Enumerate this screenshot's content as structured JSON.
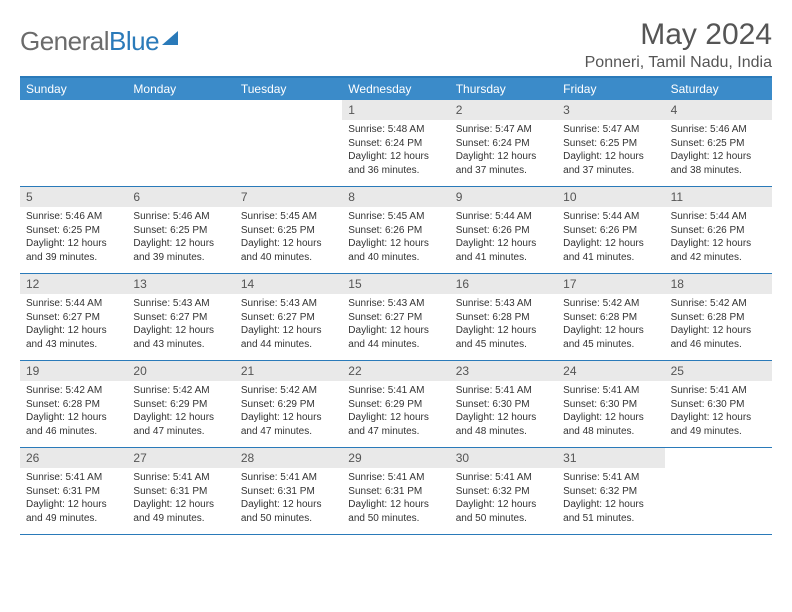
{
  "logo": {
    "text_gray": "General",
    "text_blue": "Blue"
  },
  "title": "May 2024",
  "location": "Ponneri, Tamil Nadu, India",
  "colors": {
    "header_bar": "#3b8bc9",
    "rule": "#2a7ab9",
    "daynum_bg": "#e9e9e9",
    "text_muted": "#555555"
  },
  "weekdays": [
    "Sunday",
    "Monday",
    "Tuesday",
    "Wednesday",
    "Thursday",
    "Friday",
    "Saturday"
  ],
  "weeks": [
    [
      {
        "empty": true
      },
      {
        "empty": true
      },
      {
        "empty": true
      },
      {
        "n": "1",
        "sunrise": "5:48 AM",
        "sunset": "6:24 PM",
        "daylight": "12 hours and 36 minutes."
      },
      {
        "n": "2",
        "sunrise": "5:47 AM",
        "sunset": "6:24 PM",
        "daylight": "12 hours and 37 minutes."
      },
      {
        "n": "3",
        "sunrise": "5:47 AM",
        "sunset": "6:25 PM",
        "daylight": "12 hours and 37 minutes."
      },
      {
        "n": "4",
        "sunrise": "5:46 AM",
        "sunset": "6:25 PM",
        "daylight": "12 hours and 38 minutes."
      }
    ],
    [
      {
        "n": "5",
        "sunrise": "5:46 AM",
        "sunset": "6:25 PM",
        "daylight": "12 hours and 39 minutes."
      },
      {
        "n": "6",
        "sunrise": "5:46 AM",
        "sunset": "6:25 PM",
        "daylight": "12 hours and 39 minutes."
      },
      {
        "n": "7",
        "sunrise": "5:45 AM",
        "sunset": "6:25 PM",
        "daylight": "12 hours and 40 minutes."
      },
      {
        "n": "8",
        "sunrise": "5:45 AM",
        "sunset": "6:26 PM",
        "daylight": "12 hours and 40 minutes."
      },
      {
        "n": "9",
        "sunrise": "5:44 AM",
        "sunset": "6:26 PM",
        "daylight": "12 hours and 41 minutes."
      },
      {
        "n": "10",
        "sunrise": "5:44 AM",
        "sunset": "6:26 PM",
        "daylight": "12 hours and 41 minutes."
      },
      {
        "n": "11",
        "sunrise": "5:44 AM",
        "sunset": "6:26 PM",
        "daylight": "12 hours and 42 minutes."
      }
    ],
    [
      {
        "n": "12",
        "sunrise": "5:44 AM",
        "sunset": "6:27 PM",
        "daylight": "12 hours and 43 minutes."
      },
      {
        "n": "13",
        "sunrise": "5:43 AM",
        "sunset": "6:27 PM",
        "daylight": "12 hours and 43 minutes."
      },
      {
        "n": "14",
        "sunrise": "5:43 AM",
        "sunset": "6:27 PM",
        "daylight": "12 hours and 44 minutes."
      },
      {
        "n": "15",
        "sunrise": "5:43 AM",
        "sunset": "6:27 PM",
        "daylight": "12 hours and 44 minutes."
      },
      {
        "n": "16",
        "sunrise": "5:43 AM",
        "sunset": "6:28 PM",
        "daylight": "12 hours and 45 minutes."
      },
      {
        "n": "17",
        "sunrise": "5:42 AM",
        "sunset": "6:28 PM",
        "daylight": "12 hours and 45 minutes."
      },
      {
        "n": "18",
        "sunrise": "5:42 AM",
        "sunset": "6:28 PM",
        "daylight": "12 hours and 46 minutes."
      }
    ],
    [
      {
        "n": "19",
        "sunrise": "5:42 AM",
        "sunset": "6:28 PM",
        "daylight": "12 hours and 46 minutes."
      },
      {
        "n": "20",
        "sunrise": "5:42 AM",
        "sunset": "6:29 PM",
        "daylight": "12 hours and 47 minutes."
      },
      {
        "n": "21",
        "sunrise": "5:42 AM",
        "sunset": "6:29 PM",
        "daylight": "12 hours and 47 minutes."
      },
      {
        "n": "22",
        "sunrise": "5:41 AM",
        "sunset": "6:29 PM",
        "daylight": "12 hours and 47 minutes."
      },
      {
        "n": "23",
        "sunrise": "5:41 AM",
        "sunset": "6:30 PM",
        "daylight": "12 hours and 48 minutes."
      },
      {
        "n": "24",
        "sunrise": "5:41 AM",
        "sunset": "6:30 PM",
        "daylight": "12 hours and 48 minutes."
      },
      {
        "n": "25",
        "sunrise": "5:41 AM",
        "sunset": "6:30 PM",
        "daylight": "12 hours and 49 minutes."
      }
    ],
    [
      {
        "n": "26",
        "sunrise": "5:41 AM",
        "sunset": "6:31 PM",
        "daylight": "12 hours and 49 minutes."
      },
      {
        "n": "27",
        "sunrise": "5:41 AM",
        "sunset": "6:31 PM",
        "daylight": "12 hours and 49 minutes."
      },
      {
        "n": "28",
        "sunrise": "5:41 AM",
        "sunset": "6:31 PM",
        "daylight": "12 hours and 50 minutes."
      },
      {
        "n": "29",
        "sunrise": "5:41 AM",
        "sunset": "6:31 PM",
        "daylight": "12 hours and 50 minutes."
      },
      {
        "n": "30",
        "sunrise": "5:41 AM",
        "sunset": "6:32 PM",
        "daylight": "12 hours and 50 minutes."
      },
      {
        "n": "31",
        "sunrise": "5:41 AM",
        "sunset": "6:32 PM",
        "daylight": "12 hours and 51 minutes."
      },
      {
        "empty": true
      }
    ]
  ],
  "labels": {
    "sunrise": "Sunrise:",
    "sunset": "Sunset:",
    "daylight": "Daylight:"
  }
}
